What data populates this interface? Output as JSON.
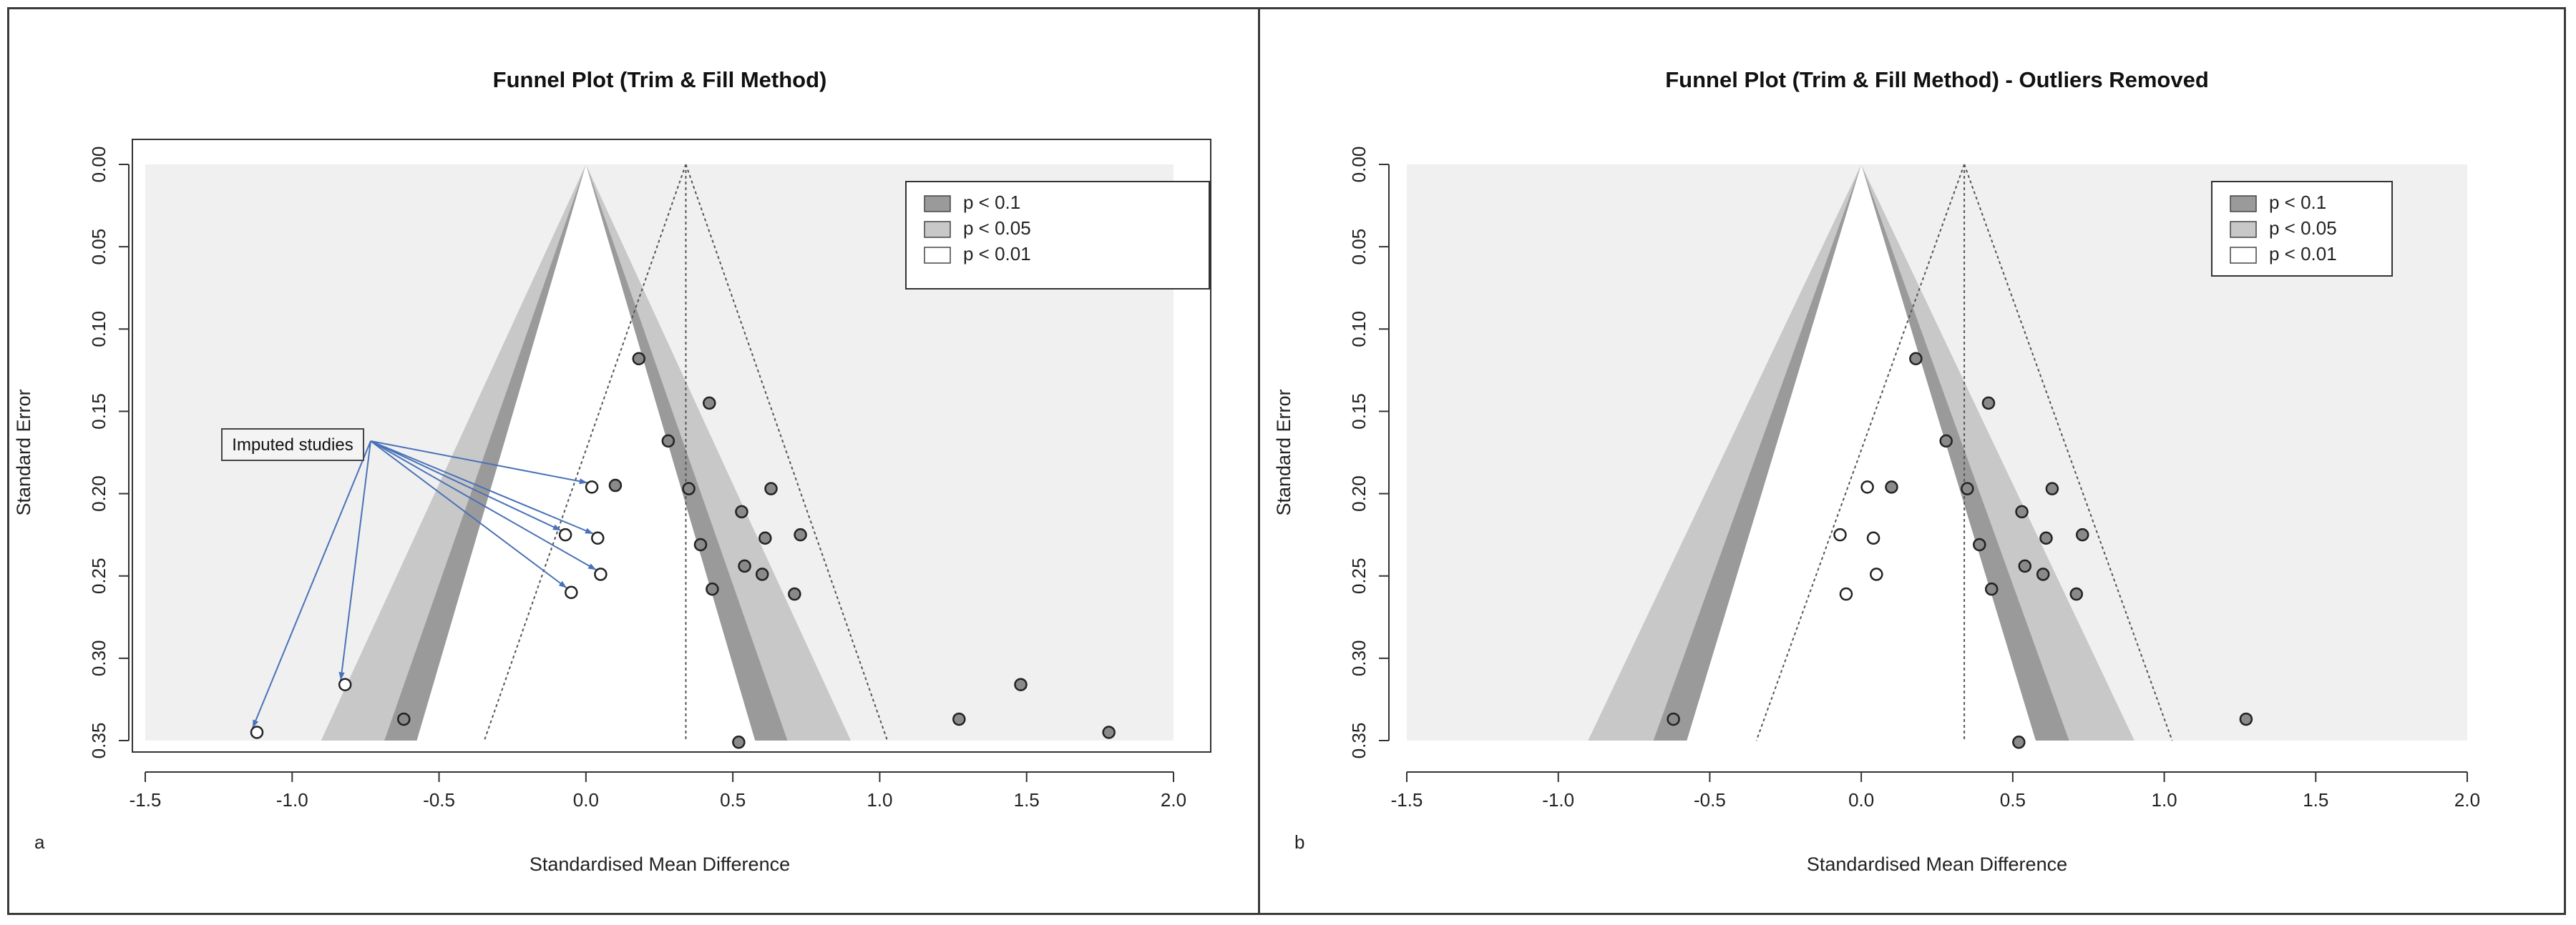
{
  "chart_data": [
    {
      "panel_tag": "a",
      "type": "scatter",
      "subtype": "funnel",
      "title": "Funnel Plot (Trim & Fill Method)",
      "xlabel": "Standardised Mean Difference",
      "ylabel": "Standard Error",
      "xlim": [
        -1.5,
        2.0
      ],
      "ylim": [
        0.0,
        0.35
      ],
      "y_reversed": true,
      "x_ticks": [
        -1.5,
        -1.0,
        -0.5,
        0.0,
        0.5,
        1.0,
        1.5,
        2.0
      ],
      "x_tick_labels": [
        "-1.5",
        "-1.0",
        "-0.5",
        "0.0",
        "0.5",
        "1.0",
        "1.5",
        "2.0"
      ],
      "y_ticks": [
        0.0,
        0.05,
        0.1,
        0.15,
        0.2,
        0.25,
        0.3,
        0.35
      ],
      "y_tick_labels": [
        "0.00",
        "0.05",
        "0.10",
        "0.15",
        "0.20",
        "0.25",
        "0.30",
        "0.35"
      ],
      "funnel_center": 0.0,
      "pooled_estimate": 0.34,
      "contour_colors": {
        "p01": "#9a9a9a",
        "p05": "#c8c8c8",
        "p001": "#ffffff",
        "background": "#f0f0f0"
      },
      "legend": [
        {
          "label": "p < 0.1",
          "color": "#9a9a9a"
        },
        {
          "label": "p < 0.05",
          "color": "#c8c8c8"
        },
        {
          "label": "p < 0.01",
          "color": "#ffffff"
        }
      ],
      "legend_position": "top-right",
      "annotation": "Imputed studies",
      "observed": [
        {
          "x": 0.18,
          "y": 0.118
        },
        {
          "x": 0.42,
          "y": 0.145
        },
        {
          "x": 0.28,
          "y": 0.168
        },
        {
          "x": 0.1,
          "y": 0.195
        },
        {
          "x": 0.35,
          "y": 0.197
        },
        {
          "x": 0.63,
          "y": 0.197
        },
        {
          "x": 0.53,
          "y": 0.211
        },
        {
          "x": 0.61,
          "y": 0.227
        },
        {
          "x": 0.73,
          "y": 0.225
        },
        {
          "x": 0.39,
          "y": 0.231
        },
        {
          "x": 0.54,
          "y": 0.244
        },
        {
          "x": 0.6,
          "y": 0.249
        },
        {
          "x": 0.43,
          "y": 0.258
        },
        {
          "x": 0.71,
          "y": 0.261
        },
        {
          "x": -0.62,
          "y": 0.337
        },
        {
          "x": 1.27,
          "y": 0.337
        },
        {
          "x": 1.48,
          "y": 0.316
        },
        {
          "x": 1.78,
          "y": 0.345
        },
        {
          "x": 0.52,
          "y": 0.351
        }
      ],
      "imputed": [
        {
          "x": 0.02,
          "y": 0.196
        },
        {
          "x": -0.07,
          "y": 0.225
        },
        {
          "x": 0.04,
          "y": 0.227
        },
        {
          "x": 0.05,
          "y": 0.249
        },
        {
          "x": -0.05,
          "y": 0.26
        },
        {
          "x": -0.82,
          "y": 0.316
        },
        {
          "x": -1.12,
          "y": 0.345
        }
      ]
    },
    {
      "panel_tag": "b",
      "type": "scatter",
      "subtype": "funnel",
      "title": "Funnel Plot (Trim & Fill Method) - Outliers Removed",
      "xlabel": "Standardised Mean Difference",
      "ylabel": "Standard Error",
      "xlim": [
        -1.5,
        2.0
      ],
      "ylim": [
        0.0,
        0.35
      ],
      "y_reversed": true,
      "x_ticks": [
        -1.5,
        -1.0,
        -0.5,
        0.0,
        0.5,
        1.0,
        1.5,
        2.0
      ],
      "x_tick_labels": [
        "-1.5",
        "-1.0",
        "-0.5",
        "0.0",
        "0.5",
        "1.0",
        "1.5",
        "2.0"
      ],
      "y_ticks": [
        0.0,
        0.05,
        0.1,
        0.15,
        0.2,
        0.25,
        0.3,
        0.35
      ],
      "y_tick_labels": [
        "0.00",
        "0.05",
        "0.10",
        "0.15",
        "0.20",
        "0.25",
        "0.30",
        "0.35"
      ],
      "funnel_center": 0.0,
      "pooled_estimate": 0.34,
      "contour_colors": {
        "p01": "#9a9a9a",
        "p05": "#c8c8c8",
        "p001": "#ffffff",
        "background": "#f0f0f0"
      },
      "legend": [
        {
          "label": "p < 0.1",
          "color": "#9a9a9a"
        },
        {
          "label": "p < 0.05",
          "color": "#c8c8c8"
        },
        {
          "label": "p < 0.01",
          "color": "#ffffff"
        }
      ],
      "legend_position": "top-right",
      "observed": [
        {
          "x": 0.18,
          "y": 0.118
        },
        {
          "x": 0.42,
          "y": 0.145
        },
        {
          "x": 0.28,
          "y": 0.168
        },
        {
          "x": 0.1,
          "y": 0.196
        },
        {
          "x": 0.35,
          "y": 0.197
        },
        {
          "x": 0.63,
          "y": 0.197
        },
        {
          "x": 0.53,
          "y": 0.211
        },
        {
          "x": 0.61,
          "y": 0.227
        },
        {
          "x": 0.73,
          "y": 0.225
        },
        {
          "x": 0.39,
          "y": 0.231
        },
        {
          "x": 0.54,
          "y": 0.244
        },
        {
          "x": 0.6,
          "y": 0.249
        },
        {
          "x": 0.43,
          "y": 0.258
        },
        {
          "x": 0.71,
          "y": 0.261
        },
        {
          "x": -0.62,
          "y": 0.337
        },
        {
          "x": 1.27,
          "y": 0.337
        },
        {
          "x": 0.52,
          "y": 0.351
        }
      ],
      "imputed": [
        {
          "x": 0.02,
          "y": 0.196
        },
        {
          "x": -0.07,
          "y": 0.225
        },
        {
          "x": 0.04,
          "y": 0.227
        },
        {
          "x": 0.05,
          "y": 0.249
        },
        {
          "x": -0.05,
          "y": 0.261
        }
      ]
    }
  ]
}
